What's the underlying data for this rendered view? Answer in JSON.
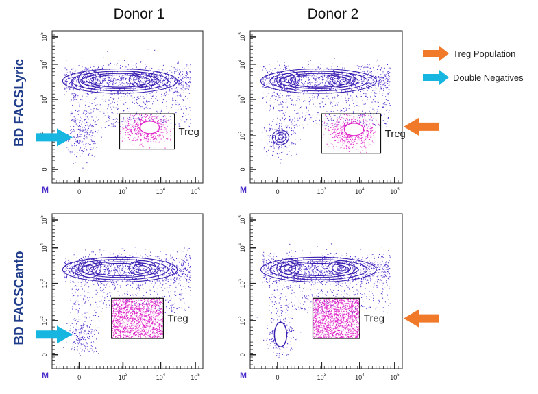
{
  "colors": {
    "title_text": "#111111",
    "row_label": "#1f3c8a",
    "dots_main": "#4b2bc9",
    "contour": "#3b1fb0",
    "treg_dots": "#e020c8",
    "gate_box": "#111111",
    "orange_arrow": "#f07a2a",
    "cyan_arrow": "#17b6e0"
  },
  "legend": [
    {
      "label": "Treg Population",
      "color": "#f07a2a",
      "icon": "orange-arrow-icon"
    },
    {
      "label": "Double Negatives",
      "color": "#17b6e0",
      "icon": "cyan-arrow-icon"
    }
  ],
  "chart_data": [
    {
      "type": "scatter",
      "donor_title": "Donor 1",
      "row_label": "BD FACSLyric",
      "axis_corner_label": "M",
      "x_ticks": [
        {
          "mantissa": "0",
          "exp": ""
        },
        {
          "mantissa": "10",
          "exp": "3"
        },
        {
          "mantissa": "10",
          "exp": "4"
        },
        {
          "mantissa": "10",
          "exp": "5"
        }
      ],
      "y_ticks": [
        {
          "mantissa": "0",
          "exp": ""
        },
        {
          "mantissa": "10",
          "exp": "2"
        },
        {
          "mantissa": "10",
          "exp": "3"
        },
        {
          "mantissa": "10",
          "exp": "4"
        },
        {
          "mantissa": "10",
          "exp": "5"
        }
      ],
      "gate": {
        "label": "Treg",
        "x_range": [
          700,
          25000
        ],
        "y_range": [
          40,
          400
        ]
      },
      "arrow": "cyan",
      "double_negative_cluster": "diffuse"
    },
    {
      "type": "scatter",
      "donor_title": "Donor 2",
      "row_label": "BD FACSLyric",
      "axis_corner_label": "M",
      "x_ticks": [
        {
          "mantissa": "0",
          "exp": ""
        },
        {
          "mantissa": "10",
          "exp": "3"
        },
        {
          "mantissa": "10",
          "exp": "4"
        },
        {
          "mantissa": "10",
          "exp": "5"
        }
      ],
      "y_ticks": [
        {
          "mantissa": "0",
          "exp": ""
        },
        {
          "mantissa": "10",
          "exp": "2"
        },
        {
          "mantissa": "10",
          "exp": "3"
        },
        {
          "mantissa": "10",
          "exp": "4"
        },
        {
          "mantissa": "10",
          "exp": "5"
        }
      ],
      "gate": {
        "label": "Treg",
        "x_range": [
          1000,
          40000
        ],
        "y_range": [
          30,
          400
        ]
      },
      "arrow": "orange",
      "double_negative_cluster": "contoured"
    },
    {
      "type": "scatter",
      "donor_title": "",
      "row_label": "BD FACSCanto",
      "axis_corner_label": "M",
      "x_ticks": [
        {
          "mantissa": "0",
          "exp": ""
        },
        {
          "mantissa": "10",
          "exp": "3"
        },
        {
          "mantissa": "10",
          "exp": "4"
        },
        {
          "mantissa": "10",
          "exp": "5"
        }
      ],
      "y_ticks": [
        {
          "mantissa": "0",
          "exp": ""
        },
        {
          "mantissa": "10",
          "exp": "2"
        },
        {
          "mantissa": "10",
          "exp": "3"
        },
        {
          "mantissa": "10",
          "exp": "4"
        },
        {
          "mantissa": "10",
          "exp": "5"
        }
      ],
      "gate": {
        "label": "Treg",
        "x_range": [
          300,
          12000
        ],
        "y_range": [
          30,
          400
        ]
      },
      "arrow": "cyan",
      "double_negative_cluster": "diffuse"
    },
    {
      "type": "scatter",
      "donor_title": "",
      "row_label": "BD FACSCanto",
      "axis_corner_label": "M",
      "x_ticks": [
        {
          "mantissa": "0",
          "exp": ""
        },
        {
          "mantissa": "10",
          "exp": "3"
        },
        {
          "mantissa": "10",
          "exp": "4"
        },
        {
          "mantissa": "10",
          "exp": "5"
        }
      ],
      "y_ticks": [
        {
          "mantissa": "0",
          "exp": ""
        },
        {
          "mantissa": "10",
          "exp": "2"
        },
        {
          "mantissa": "10",
          "exp": "3"
        },
        {
          "mantissa": "10",
          "exp": "4"
        },
        {
          "mantissa": "10",
          "exp": "5"
        }
      ],
      "gate": {
        "label": "Treg",
        "x_range": [
          400,
          10000
        ],
        "y_range": [
          30,
          400
        ]
      },
      "arrow": "orange",
      "double_negative_cluster": "solid"
    }
  ]
}
